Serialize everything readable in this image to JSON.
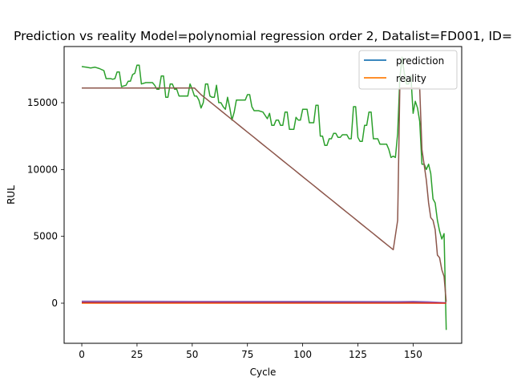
{
  "chart_data": {
    "type": "line",
    "title": "Prediction vs reality Model=polynomial regression order 2, Datalist=FD001, ID=",
    "xlabel": "Cycle",
    "ylabel": "RUL",
    "xlim": [
      -8,
      172
    ],
    "ylim": [
      -3000,
      19200
    ],
    "xticks": [
      0,
      25,
      50,
      75,
      100,
      125,
      150
    ],
    "yticks": [
      0,
      5000,
      10000,
      15000
    ],
    "grid": false,
    "legend": {
      "placement": "top-right",
      "entries": [
        {
          "label": "prediction",
          "color": "#1f77b4"
        },
        {
          "label": "reality",
          "color": "#ff7f0e"
        }
      ]
    },
    "series": [
      {
        "name": "prediction",
        "color": "#1f77b4",
        "points": [
          [
            0,
            120
          ],
          [
            50,
            115
          ],
          [
            100,
            105
          ],
          [
            143,
            95
          ],
          [
            150,
            110
          ],
          [
            157,
            80
          ],
          [
            165,
            20
          ]
        ]
      },
      {
        "name": "reality",
        "color": "#ff7f0e",
        "points": [
          [
            0,
            0
          ],
          [
            165,
            0
          ]
        ]
      },
      {
        "color": "#2ca02c",
        "points": [
          [
            0,
            17700
          ],
          [
            2,
            17650
          ],
          [
            4,
            17600
          ],
          [
            6,
            17650
          ],
          [
            8,
            17550
          ],
          [
            10,
            17400
          ],
          [
            11,
            16800
          ],
          [
            13,
            16800
          ],
          [
            14,
            16750
          ],
          [
            15,
            16800
          ],
          [
            16,
            17300
          ],
          [
            17,
            17300
          ],
          [
            18,
            16200
          ],
          [
            20,
            16300
          ],
          [
            21,
            16600
          ],
          [
            22,
            16600
          ],
          [
            23,
            17100
          ],
          [
            24,
            17200
          ],
          [
            25,
            17800
          ],
          [
            26,
            17800
          ],
          [
            27,
            16400
          ],
          [
            29,
            16500
          ],
          [
            31,
            16500
          ],
          [
            32,
            16500
          ],
          [
            33,
            16300
          ],
          [
            34,
            16000
          ],
          [
            35,
            16000
          ],
          [
            36,
            17000
          ],
          [
            37,
            17000
          ],
          [
            38,
            15400
          ],
          [
            39,
            15400
          ],
          [
            40,
            16400
          ],
          [
            41,
            16400
          ],
          [
            42,
            16000
          ],
          [
            43,
            16000
          ],
          [
            44,
            15500
          ],
          [
            45,
            15500
          ],
          [
            46,
            15500
          ],
          [
            48,
            15500
          ],
          [
            49,
            16400
          ],
          [
            50,
            16000
          ],
          [
            51,
            15500
          ],
          [
            52,
            15500
          ],
          [
            53,
            15200
          ],
          [
            54,
            14600
          ],
          [
            55,
            15000
          ],
          [
            56,
            16400
          ],
          [
            57,
            16400
          ],
          [
            58,
            15500
          ],
          [
            59,
            15400
          ],
          [
            60,
            15400
          ],
          [
            61,
            16300
          ],
          [
            62,
            15000
          ],
          [
            63,
            15000
          ],
          [
            64,
            14700
          ],
          [
            65,
            14500
          ],
          [
            66,
            15400
          ],
          [
            67,
            14600
          ],
          [
            68,
            13700
          ],
          [
            69,
            14300
          ],
          [
            70,
            15200
          ],
          [
            71,
            15200
          ],
          [
            72,
            15200
          ],
          [
            74,
            15200
          ],
          [
            75,
            15600
          ],
          [
            76,
            15600
          ],
          [
            77,
            14700
          ],
          [
            78,
            14400
          ],
          [
            80,
            14400
          ],
          [
            82,
            14300
          ],
          [
            84,
            13800
          ],
          [
            85,
            14200
          ],
          [
            86,
            13300
          ],
          [
            87,
            13300
          ],
          [
            88,
            13700
          ],
          [
            89,
            13700
          ],
          [
            90,
            13300
          ],
          [
            91,
            13300
          ],
          [
            92,
            14300
          ],
          [
            93,
            14300
          ],
          [
            94,
            13000
          ],
          [
            95,
            13000
          ],
          [
            96,
            13000
          ],
          [
            97,
            13900
          ],
          [
            98,
            13700
          ],
          [
            99,
            13700
          ],
          [
            100,
            14500
          ],
          [
            101,
            14500
          ],
          [
            102,
            14500
          ],
          [
            103,
            13500
          ],
          [
            104,
            13500
          ],
          [
            105,
            13500
          ],
          [
            106,
            14800
          ],
          [
            107,
            14800
          ],
          [
            108,
            12500
          ],
          [
            109,
            12500
          ],
          [
            110,
            11800
          ],
          [
            111,
            11800
          ],
          [
            112,
            12300
          ],
          [
            113,
            12300
          ],
          [
            114,
            12700
          ],
          [
            115,
            12700
          ],
          [
            116,
            12400
          ],
          [
            117,
            12400
          ],
          [
            118,
            12600
          ],
          [
            119,
            12600
          ],
          [
            120,
            12600
          ],
          [
            121,
            12300
          ],
          [
            122,
            12300
          ],
          [
            123,
            14700
          ],
          [
            124,
            14700
          ],
          [
            125,
            12400
          ],
          [
            126,
            12100
          ],
          [
            127,
            12100
          ],
          [
            128,
            13300
          ],
          [
            129,
            13300
          ],
          [
            130,
            14300
          ],
          [
            131,
            14300
          ],
          [
            132,
            12300
          ],
          [
            133,
            12300
          ],
          [
            134,
            12300
          ],
          [
            135,
            11900
          ],
          [
            136,
            11900
          ],
          [
            137,
            11900
          ],
          [
            138,
            11900
          ],
          [
            139,
            11500
          ],
          [
            140,
            10900
          ],
          [
            141,
            11000
          ],
          [
            142,
            10900
          ],
          [
            143,
            12700
          ],
          [
            144,
            16800
          ],
          [
            145,
            18400
          ],
          [
            146,
            17200
          ],
          [
            147,
            16400
          ],
          [
            148,
            16400
          ],
          [
            149,
            17000
          ],
          [
            150,
            14200
          ],
          [
            151,
            15100
          ],
          [
            152,
            14600
          ],
          [
            153,
            13600
          ],
          [
            154,
            10400
          ],
          [
            155,
            10400
          ],
          [
            156,
            10000
          ],
          [
            157,
            10400
          ],
          [
            158,
            9700
          ],
          [
            159,
            7800
          ],
          [
            160,
            7500
          ],
          [
            161,
            6200
          ],
          [
            162,
            5400
          ],
          [
            163,
            4800
          ],
          [
            164,
            5200
          ],
          [
            165,
            -2000
          ]
        ]
      },
      {
        "color": "#9467bd",
        "points": [
          [
            0,
            150
          ],
          [
            50,
            140
          ],
          [
            100,
            130
          ],
          [
            143,
            120
          ],
          [
            150,
            135
          ],
          [
            157,
            100
          ],
          [
            165,
            30
          ]
        ]
      },
      {
        "color": "#d62728",
        "points": [
          [
            0,
            40
          ],
          [
            50,
            35
          ],
          [
            100,
            30
          ],
          [
            143,
            25
          ],
          [
            150,
            30
          ],
          [
            157,
            20
          ],
          [
            165,
            5
          ]
        ]
      },
      {
        "color": "#8c564b",
        "points": [
          [
            0,
            16100
          ],
          [
            51,
            16100
          ],
          [
            54,
            15600
          ],
          [
            57,
            15200
          ],
          [
            60,
            14800
          ],
          [
            63,
            14400
          ],
          [
            66,
            14000
          ],
          [
            69,
            13600
          ],
          [
            72,
            13200
          ],
          [
            75,
            12800
          ],
          [
            78,
            12400
          ],
          [
            81,
            12000
          ],
          [
            84,
            11600
          ],
          [
            87,
            11200
          ],
          [
            90,
            10800
          ],
          [
            93,
            10400
          ],
          [
            96,
            10000
          ],
          [
            99,
            9600
          ],
          [
            102,
            9200
          ],
          [
            105,
            8800
          ],
          [
            108,
            8400
          ],
          [
            111,
            8000
          ],
          [
            114,
            7600
          ],
          [
            117,
            7200
          ],
          [
            120,
            6800
          ],
          [
            123,
            6400
          ],
          [
            126,
            6000
          ],
          [
            129,
            5600
          ],
          [
            132,
            5200
          ],
          [
            135,
            4800
          ],
          [
            138,
            4400
          ],
          [
            141,
            4000
          ],
          [
            143,
            6200
          ],
          [
            144,
            16100
          ],
          [
            153,
            16100
          ],
          [
            154,
            11500
          ],
          [
            156,
            9200
          ],
          [
            157,
            7500
          ],
          [
            158,
            6400
          ],
          [
            159,
            6200
          ],
          [
            160,
            5500
          ],
          [
            161,
            3600
          ],
          [
            162,
            3400
          ],
          [
            163,
            2500
          ],
          [
            164,
            2000
          ],
          [
            165,
            100
          ]
        ]
      }
    ]
  }
}
